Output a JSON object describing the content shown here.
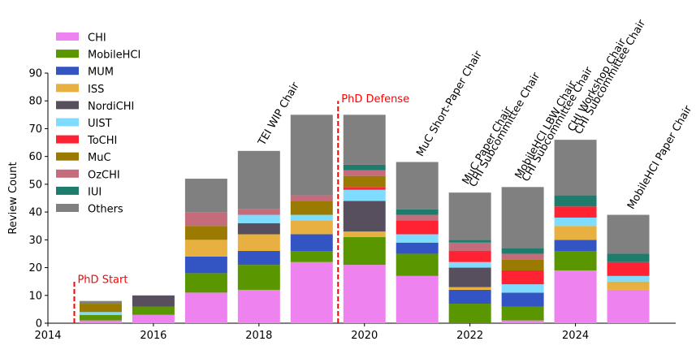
{
  "chart_data": {
    "type": "bar",
    "stacked": true,
    "ylabel": "Review Count",
    "xlabel": "",
    "ylim": [
      0,
      90
    ],
    "xlim": [
      2014,
      2025.9
    ],
    "x_ticks": [
      2014,
      2016,
      2018,
      2020,
      2022,
      2024
    ],
    "y_ticks": [
      0,
      10,
      20,
      30,
      40,
      50,
      60,
      70,
      80,
      90
    ],
    "bar_width": 0.8,
    "legend_position": "top-left",
    "grid": false,
    "x": [
      2015,
      2016,
      2017,
      2018,
      2019,
      2020,
      2021,
      2022,
      2023,
      2024,
      2025
    ],
    "series": [
      {
        "name": "CHI",
        "color": "#ee82ee",
        "values": [
          1,
          3,
          11,
          12,
          22,
          21,
          17,
          0,
          1,
          19,
          12
        ]
      },
      {
        "name": "MobileHCI",
        "color": "#5a9600",
        "values": [
          2,
          3,
          7,
          9,
          4,
          10,
          8,
          7,
          5,
          7,
          0
        ]
      },
      {
        "name": "MUM",
        "color": "#3355c4",
        "values": [
          0,
          0,
          6,
          5,
          6,
          0,
          4,
          5,
          5,
          4,
          0
        ]
      },
      {
        "name": "ISS",
        "color": "#e8b040",
        "values": [
          0,
          0,
          6,
          6,
          5,
          2,
          0,
          1,
          0,
          5,
          3
        ]
      },
      {
        "name": "NordiCHI",
        "color": "#574f5e",
        "values": [
          0,
          4,
          0,
          4,
          0,
          11,
          0,
          7,
          0,
          0,
          0
        ]
      },
      {
        "name": "UIST",
        "color": "#7fdcff",
        "values": [
          1,
          0,
          0,
          3,
          2,
          4,
          3,
          2,
          3,
          3,
          2
        ]
      },
      {
        "name": "ToCHI",
        "color": "#ff2233",
        "values": [
          0,
          0,
          0,
          0,
          0,
          1,
          5,
          4,
          5,
          4,
          5
        ]
      },
      {
        "name": "MuC",
        "color": "#9a7a00",
        "values": [
          3,
          0,
          5,
          0,
          5,
          4,
          0,
          0,
          4,
          0,
          0
        ]
      },
      {
        "name": "OzCHI",
        "color": "#c46c7c",
        "values": [
          0,
          0,
          5,
          2,
          2,
          2,
          2,
          3,
          2,
          0,
          0
        ]
      },
      {
        "name": "IUI",
        "color": "#1e7c6c",
        "values": [
          0,
          0,
          0,
          0,
          0,
          2,
          2,
          1,
          2,
          4,
          3
        ]
      },
      {
        "name": "Others",
        "color": "#808080",
        "values": [
          1,
          0,
          12,
          21,
          29,
          18,
          17,
          17,
          22,
          20,
          14
        ]
      }
    ],
    "annotations": [
      {
        "x": 2018,
        "lines": [
          "TEI WIP Chair"
        ]
      },
      {
        "x": 2021,
        "lines": [
          "MuC Short-Paper Chair"
        ]
      },
      {
        "x": 2022,
        "lines": [
          "MuC Paper Chair",
          "CHI Subcommittee Chair"
        ]
      },
      {
        "x": 2023,
        "lines": [
          "MobileHCI LBW Chair",
          "CHI Subcommittee Chair"
        ]
      },
      {
        "x": 2024,
        "lines": [
          "CHI Workshop Chair",
          "CHI Subcommittee Chair"
        ]
      },
      {
        "x": 2025,
        "lines": [
          "MobileHCI Paper Chair"
        ]
      }
    ],
    "markers": [
      {
        "x": 2014.5,
        "y_top": 15,
        "label": "PhD Start",
        "color": "#ff0000"
      },
      {
        "x": 2019.5,
        "y_top": 80,
        "label": "PhD Defense",
        "color": "#ff0000"
      }
    ]
  }
}
